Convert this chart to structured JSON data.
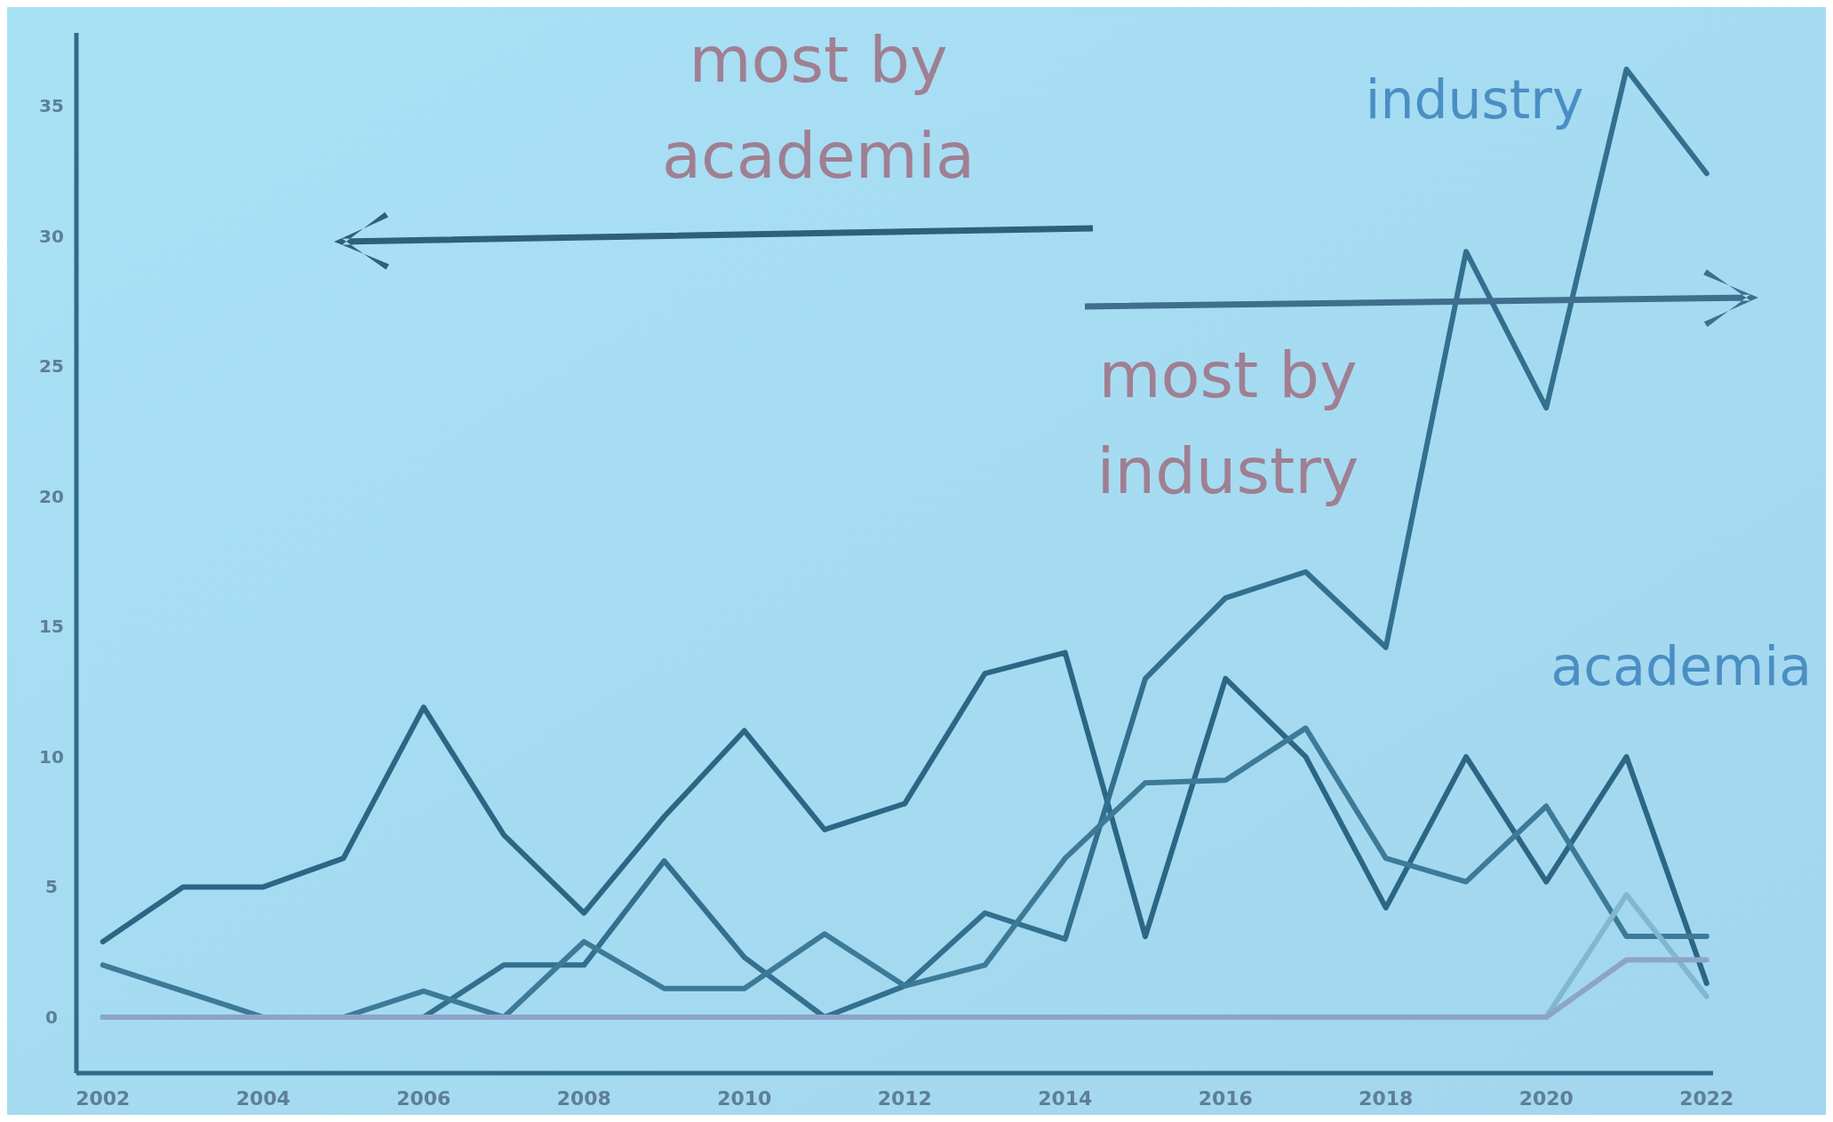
{
  "chart_data": {
    "type": "line",
    "x": [
      2002,
      2003,
      2004,
      2005,
      2006,
      2007,
      2008,
      2009,
      2010,
      2011,
      2012,
      2013,
      2014,
      2015,
      2016,
      2017,
      2018,
      2019,
      2020,
      2021,
      2022
    ],
    "series": [
      {
        "name": "academia",
        "color": "#2b6784",
        "values": [
          2.9,
          5.0,
          5.0,
          6.1,
          11.9,
          7.0,
          4.0,
          7.7,
          11.0,
          7.2,
          8.2,
          13.2,
          14.0,
          3.1,
          13.0,
          10.0,
          4.2,
          10.0,
          5.2,
          10.0,
          1.3
        ]
      },
      {
        "name": "industry",
        "color": "#33708f",
        "values": [
          0,
          0,
          0,
          0,
          0,
          2.0,
          2.0,
          6.0,
          2.3,
          0,
          1.2,
          4.0,
          3.0,
          13.0,
          16.1,
          17.1,
          14.2,
          29.4,
          23.4,
          36.4,
          32.4
        ]
      },
      {
        "color": "#3d7a98",
        "values": [
          2.0,
          1.0,
          0,
          0,
          1.0,
          0,
          2.9,
          1.1,
          1.1,
          3.2,
          1.2,
          2.0,
          6.1,
          9.0,
          9.1,
          11.1,
          6.1,
          5.2,
          8.1,
          3.1,
          3.1
        ]
      },
      {
        "color": "#82b8cf",
        "values": [
          0,
          0,
          0,
          0,
          0,
          0,
          0,
          0,
          0,
          0,
          0,
          0,
          0,
          0,
          0,
          0,
          0,
          0,
          0,
          4.7,
          0.8
        ]
      },
      {
        "color": "#8da4c9",
        "values": [
          0,
          0,
          0,
          0,
          0,
          0,
          0,
          0,
          0,
          0,
          0,
          0,
          0,
          0,
          0,
          0,
          0,
          0,
          0,
          2.2,
          2.2
        ]
      }
    ],
    "xlim": [
      2001.67,
      2022.08
    ],
    "xticks": [
      2002,
      2004,
      2006,
      2008,
      2010,
      2012,
      2014,
      2016,
      2018,
      2020,
      2022
    ],
    "ylim": [
      -2.15,
      37.8
    ],
    "yticks": [
      0,
      5,
      10,
      15,
      20,
      25,
      30,
      35
    ],
    "annotations": [
      "most by academia",
      "most by industry"
    ],
    "grid": false,
    "marker": "none",
    "line_style": "solid"
  }
}
